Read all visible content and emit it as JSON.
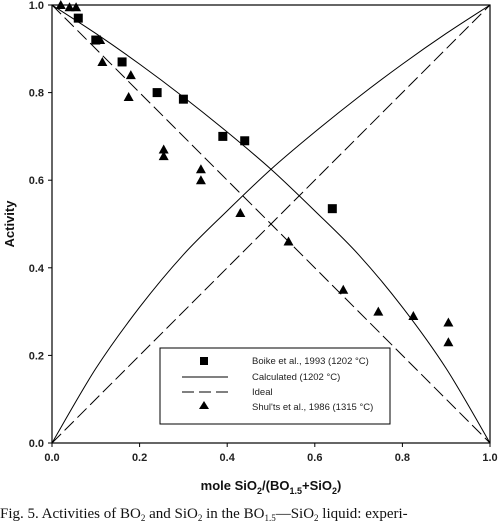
{
  "chart_data": {
    "type": "scatter",
    "xlabel": {
      "main": "mole SiO",
      "sub1": "2",
      "mid": "/(BO",
      "sub2": "1.5",
      "end": "+SiO",
      "sub3": "2",
      "close": ")"
    },
    "ylabel": "Activity",
    "xlim": [
      0,
      1
    ],
    "ylim": [
      0,
      1
    ],
    "xticks": [
      "0.0",
      "0.2",
      "0.4",
      "0.6",
      "0.8",
      "1.0"
    ],
    "yticks": [
      "0.0",
      "0.2",
      "0.4",
      "0.6",
      "0.8",
      "1.0"
    ],
    "grid": false,
    "legend_position": "bottom-center",
    "series": [
      {
        "name": "Boike et al., 1993 (1202 °C)",
        "kind": "scatter",
        "marker": "square",
        "points": [
          [
            0.06,
            0.97
          ],
          [
            0.1,
            0.92
          ],
          [
            0.16,
            0.87
          ],
          [
            0.24,
            0.8
          ],
          [
            0.3,
            0.785
          ],
          [
            0.39,
            0.7
          ],
          [
            0.44,
            0.69
          ],
          [
            0.64,
            0.535
          ]
        ]
      },
      {
        "name": "Calculated (1202 °C)",
        "kind": "line",
        "style": "solid",
        "points": [
          [
            0.0,
            1.0
          ],
          [
            0.1,
            0.935
          ],
          [
            0.2,
            0.865
          ],
          [
            0.3,
            0.79
          ],
          [
            0.4,
            0.71
          ],
          [
            0.5,
            0.625
          ],
          [
            0.6,
            0.53
          ],
          [
            0.7,
            0.43
          ],
          [
            0.8,
            0.31
          ],
          [
            0.9,
            0.17
          ],
          [
            1.0,
            0.0
          ]
        ]
      },
      {
        "name": "Calculated (1202 °C)",
        "kind": "line",
        "style": "solid",
        "points": [
          [
            0.0,
            0.0
          ],
          [
            0.1,
            0.17
          ],
          [
            0.2,
            0.31
          ],
          [
            0.3,
            0.43
          ],
          [
            0.4,
            0.53
          ],
          [
            0.5,
            0.625
          ],
          [
            0.6,
            0.71
          ],
          [
            0.7,
            0.79
          ],
          [
            0.8,
            0.865
          ],
          [
            0.9,
            0.935
          ],
          [
            1.0,
            1.0
          ]
        ]
      },
      {
        "name": "Ideal",
        "kind": "line",
        "style": "dashed",
        "points": [
          [
            0.0,
            1.0
          ],
          [
            1.0,
            0.0
          ]
        ]
      },
      {
        "name": "Ideal",
        "kind": "line",
        "style": "dashed",
        "points": [
          [
            0.0,
            0.0
          ],
          [
            1.0,
            1.0
          ]
        ]
      },
      {
        "name": "Shul'ts et al., 1986 (1315 °C)",
        "kind": "scatter",
        "marker": "triangle",
        "points": [
          [
            0.02,
            1.0
          ],
          [
            0.04,
            0.995
          ],
          [
            0.055,
            0.995
          ],
          [
            0.11,
            0.92
          ],
          [
            0.115,
            0.87
          ],
          [
            0.175,
            0.79
          ],
          [
            0.18,
            0.84
          ],
          [
            0.255,
            0.67
          ],
          [
            0.255,
            0.655
          ],
          [
            0.34,
            0.625
          ],
          [
            0.34,
            0.6
          ],
          [
            0.43,
            0.525
          ],
          [
            0.54,
            0.46
          ],
          [
            0.665,
            0.35
          ],
          [
            0.745,
            0.3
          ],
          [
            0.825,
            0.29
          ],
          [
            0.905,
            0.275
          ],
          [
            0.905,
            0.23
          ]
        ]
      }
    ],
    "legend": [
      {
        "label": "Boike et al., 1993 (1202 °C)",
        "symbol": "square"
      },
      {
        "label": "Calculated (1202 °C)",
        "symbol": "solid-line"
      },
      {
        "label": "Ideal",
        "symbol": "dashed-line"
      },
      {
        "label": "Shul'ts et al., 1986 (1315 °C)",
        "symbol": "triangle"
      }
    ]
  },
  "caption": {
    "part1": "Fig. 5.  Activities of BO",
    "part2": " and SiO",
    "part3": " in the BO",
    "part4": "—SiO",
    "part5": " liquid: experi-"
  }
}
